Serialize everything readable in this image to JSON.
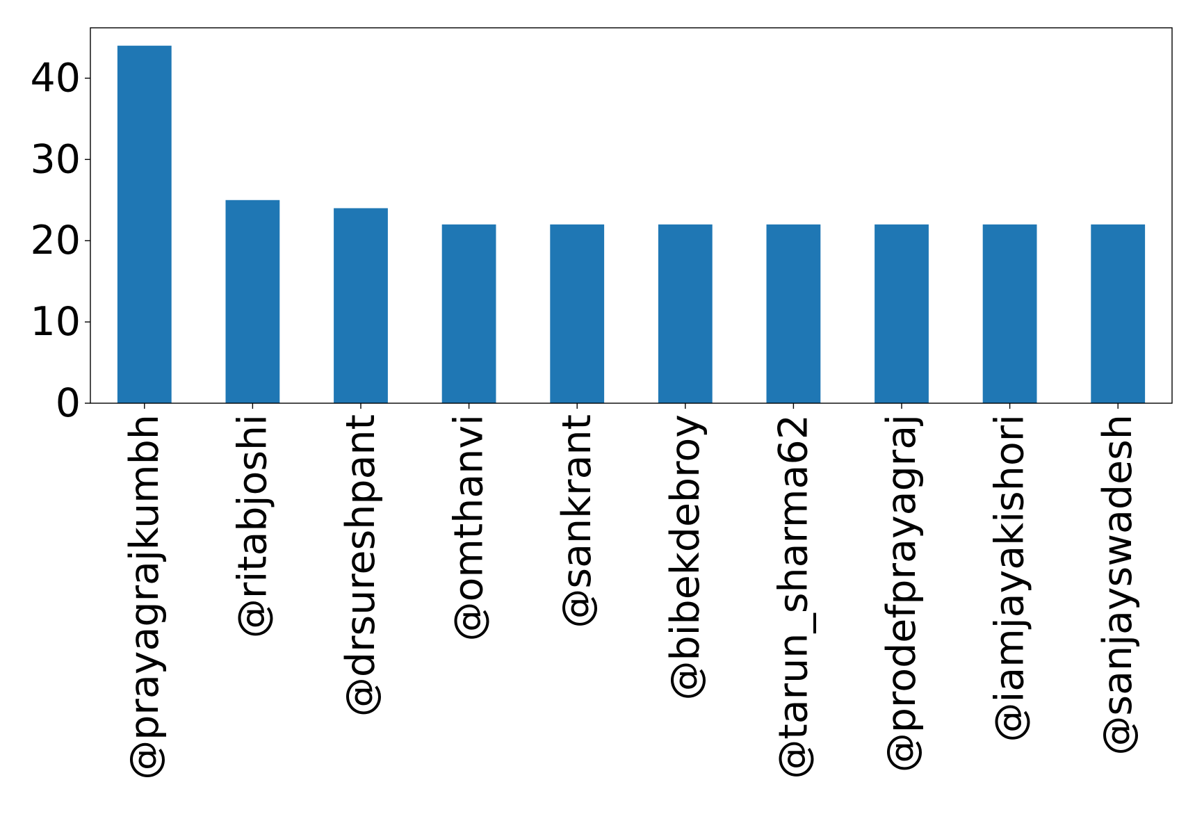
{
  "chart_data": {
    "type": "bar",
    "title": "",
    "xlabel": "",
    "ylabel": "",
    "categories": [
      "@prayagrajkumbh",
      "@ritabjoshi",
      "@drsureshpant",
      "@omthanvi",
      "@sankrant",
      "@bibekdebroy",
      "@tarun_sharma62",
      "@prodefprayagraj",
      "@iamjayakishori",
      "@sanjayswadesh"
    ],
    "values": [
      44,
      25,
      24,
      22,
      22,
      22,
      22,
      22,
      22,
      22
    ],
    "ylim": [
      0,
      46.2
    ],
    "yticks": [
      0,
      10,
      20,
      30,
      40
    ],
    "grid": false,
    "legend": "none",
    "bar_color": "#1f77b4"
  }
}
